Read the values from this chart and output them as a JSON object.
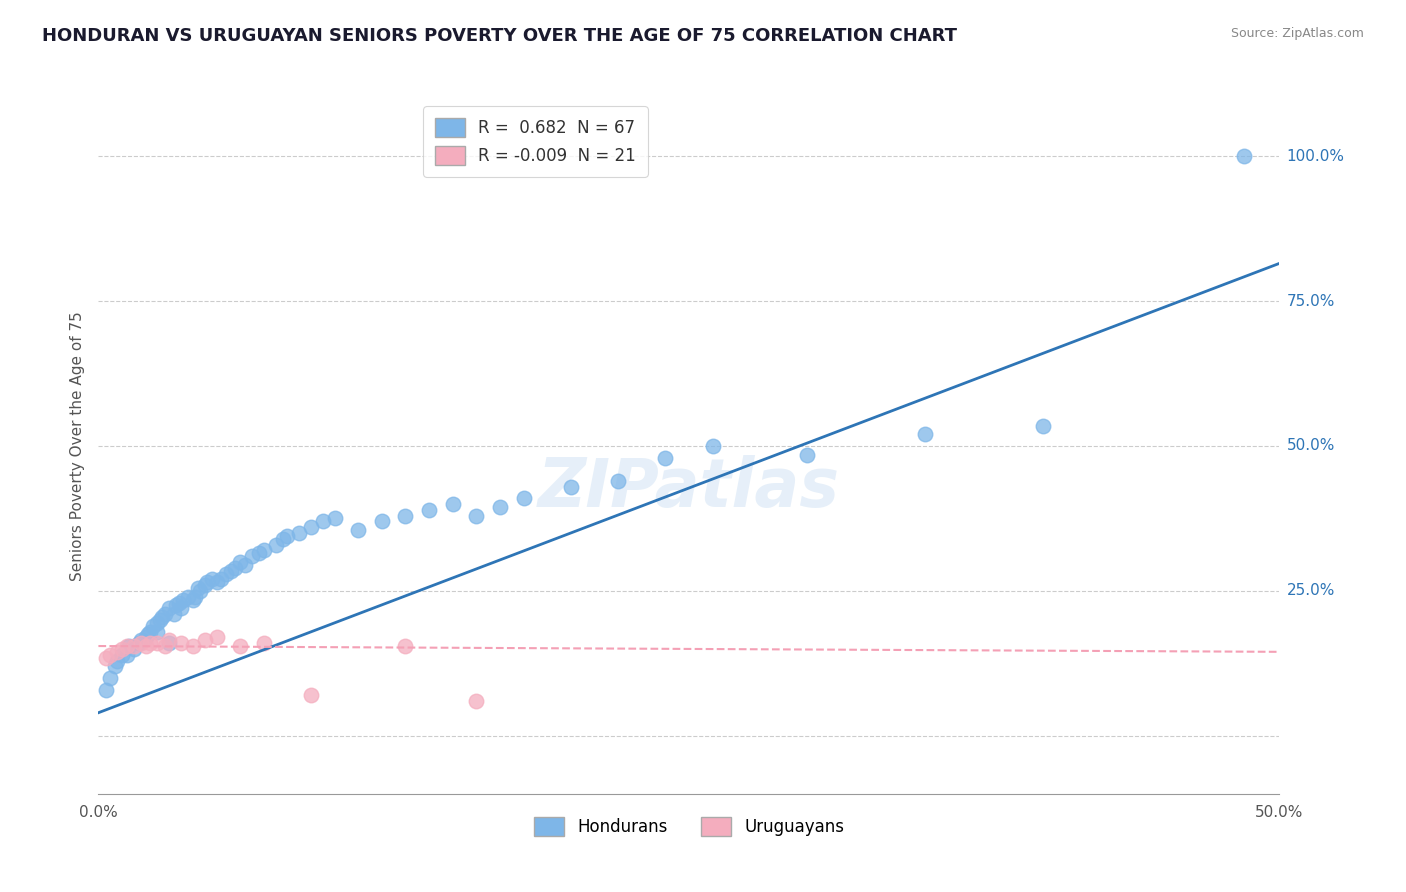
{
  "title": "HONDURAN VS URUGUAYAN SENIORS POVERTY OVER THE AGE OF 75 CORRELATION CHART",
  "source": "Source: ZipAtlas.com",
  "ylabel": "Seniors Poverty Over the Age of 75",
  "xlabel": "",
  "xlim": [
    0.0,
    0.5
  ],
  "ylim": [
    -0.1,
    1.1
  ],
  "ytick_vals": [
    0.0,
    0.25,
    0.5,
    0.75,
    1.0
  ],
  "ytick_labels": [
    "",
    "25.0%",
    "50.0%",
    "75.0%",
    "100.0%"
  ],
  "xtick_vals": [
    0.0,
    0.1,
    0.2,
    0.3,
    0.4,
    0.5
  ],
  "xtick_labels": [
    "0.0%",
    "",
    "",
    "",
    "",
    "50.0%"
  ],
  "honduran_R": 0.682,
  "honduran_N": 67,
  "uruguayan_R": -0.009,
  "uruguayan_N": 21,
  "honduran_color": "#7EB6E8",
  "uruguayan_color": "#F4ADBE",
  "honduran_line_color": "#2E75B6",
  "uruguayan_line_color": "#F4A0B5",
  "background_color": "#FFFFFF",
  "grid_color": "#CCCCCC",
  "watermark_text": "ZIPatlas",
  "title_color": "#1a1a2e",
  "title_fontsize": 13,
  "honduran_x": [
    0.003,
    0.005,
    0.007,
    0.008,
    0.01,
    0.012,
    0.013,
    0.015,
    0.017,
    0.018,
    0.02,
    0.021,
    0.022,
    0.023,
    0.025,
    0.025,
    0.026,
    0.027,
    0.028,
    0.03,
    0.03,
    0.032,
    0.033,
    0.034,
    0.035,
    0.036,
    0.038,
    0.04,
    0.041,
    0.042,
    0.043,
    0.045,
    0.046,
    0.048,
    0.05,
    0.052,
    0.054,
    0.056,
    0.058,
    0.06,
    0.062,
    0.065,
    0.068,
    0.07,
    0.075,
    0.078,
    0.08,
    0.085,
    0.09,
    0.095,
    0.1,
    0.11,
    0.12,
    0.13,
    0.14,
    0.15,
    0.16,
    0.17,
    0.18,
    0.2,
    0.22,
    0.24,
    0.26,
    0.3,
    0.35,
    0.4,
    0.485
  ],
  "honduran_y": [
    0.08,
    0.1,
    0.12,
    0.13,
    0.14,
    0.14,
    0.155,
    0.15,
    0.16,
    0.165,
    0.17,
    0.175,
    0.18,
    0.19,
    0.18,
    0.195,
    0.2,
    0.205,
    0.21,
    0.16,
    0.22,
    0.21,
    0.225,
    0.23,
    0.22,
    0.235,
    0.24,
    0.235,
    0.24,
    0.255,
    0.25,
    0.26,
    0.265,
    0.27,
    0.265,
    0.27,
    0.28,
    0.285,
    0.29,
    0.3,
    0.295,
    0.31,
    0.315,
    0.32,
    0.33,
    0.34,
    0.345,
    0.35,
    0.36,
    0.37,
    0.375,
    0.355,
    0.37,
    0.38,
    0.39,
    0.4,
    0.38,
    0.395,
    0.41,
    0.43,
    0.44,
    0.48,
    0.5,
    0.485,
    0.52,
    0.535,
    1.0
  ],
  "uruguayan_x": [
    0.003,
    0.005,
    0.008,
    0.01,
    0.012,
    0.015,
    0.018,
    0.02,
    0.022,
    0.025,
    0.028,
    0.03,
    0.035,
    0.04,
    0.045,
    0.05,
    0.06,
    0.07,
    0.09,
    0.13,
    0.16
  ],
  "uruguayan_y": [
    0.135,
    0.14,
    0.145,
    0.15,
    0.155,
    0.155,
    0.16,
    0.155,
    0.16,
    0.16,
    0.155,
    0.165,
    0.16,
    0.155,
    0.165,
    0.17,
    0.155,
    0.16,
    0.07,
    0.155,
    0.06
  ],
  "honduran_line_x": [
    0.0,
    0.5
  ],
  "honduran_line_y": [
    0.04,
    0.815
  ],
  "uruguayan_line_x": [
    0.0,
    0.5
  ],
  "uruguayan_line_y": [
    0.155,
    0.145
  ]
}
